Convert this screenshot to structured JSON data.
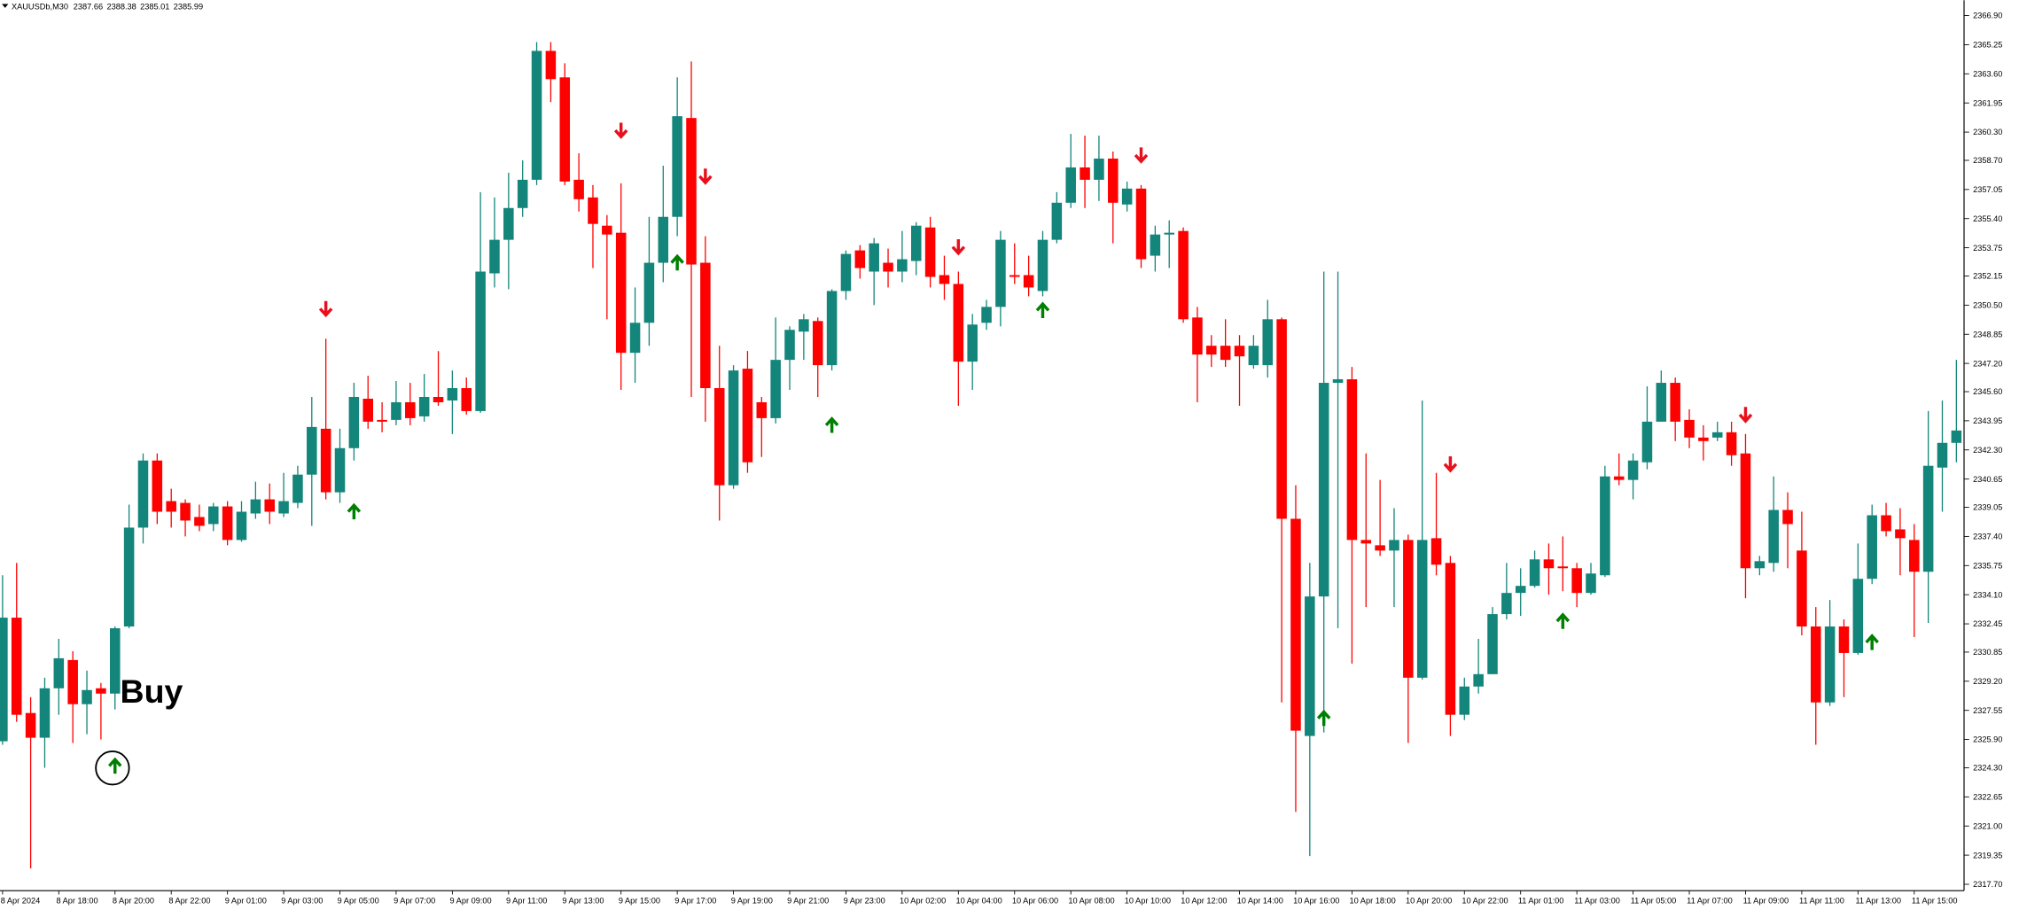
{
  "chart_data": {
    "type": "candlestick",
    "symbol": "XAUUSDb,M30",
    "ohlc": [
      2387.66,
      2388.38,
      2385.01,
      2385.99
    ],
    "annotation": "Buy",
    "up_color": "#13857a",
    "down_color": "#ff0000",
    "up_arrow_color": "#008000",
    "down_arrow_color": "#e8101c",
    "ylim": [
      2317.34,
      2367.77
    ],
    "yticks": [
      {
        "value": 2366.9,
        "label": "2366.90"
      },
      2365.25,
      {
        "value": 2363.6,
        "label": "2363.60"
      },
      2361.95,
      {
        "value": 2360.3,
        "label": "2360.30"
      },
      {
        "value": 2358.7,
        "label": "2358.70"
      },
      2357.05,
      {
        "value": 2355.4,
        "label": "2355.40"
      },
      2353.75,
      2352.15,
      {
        "value": 2350.5,
        "label": "2350.50"
      },
      2348.85,
      {
        "value": 2347.2,
        "label": "2347.20"
      },
      {
        "value": 2345.6,
        "label": "2345.60"
      },
      2343.95,
      {
        "value": 2342.3,
        "label": "2342.30"
      },
      2340.65,
      2339.05,
      {
        "value": 2337.4,
        "label": "2337.40"
      },
      2335.75,
      {
        "value": 2334.1,
        "label": "2334.10"
      },
      2332.45,
      2330.85,
      {
        "value": 2329.2,
        "label": "2329.20"
      },
      2327.55,
      {
        "value": 2325.9,
        "label": "2325.90"
      },
      {
        "value": 2324.3,
        "label": "2324.30"
      },
      2322.65,
      {
        "value": 2321.0,
        "label": "2321.00"
      },
      2319.35,
      {
        "value": 2317.7,
        "label": "2317.70"
      }
    ],
    "categories": [
      "8 Apr 2024",
      null,
      null,
      null,
      "8 Apr 18:00",
      null,
      null,
      null,
      "8 Apr 20:00",
      null,
      null,
      null,
      "8 Apr 22:00",
      null,
      null,
      null,
      "9 Apr 01:00",
      null,
      null,
      null,
      "9 Apr 03:00",
      null,
      null,
      null,
      "9 Apr 05:00",
      null,
      null,
      null,
      "9 Apr 07:00",
      null,
      null,
      null,
      "9 Apr 09:00",
      null,
      null,
      null,
      "9 Apr 11:00",
      null,
      null,
      null,
      "9 Apr 13:00",
      null,
      null,
      null,
      "9 Apr 15:00",
      null,
      null,
      null,
      "9 Apr 17:00",
      null,
      null,
      null,
      "9 Apr 19:00",
      null,
      null,
      null,
      "9 Apr 21:00",
      null,
      null,
      null,
      "9 Apr 23:00",
      null,
      null,
      null,
      "10 Apr 02:00",
      null,
      null,
      null,
      "10 Apr 04:00",
      null,
      null,
      null,
      "10 Apr 06:00",
      null,
      null,
      null,
      "10 Apr 08:00",
      null,
      null,
      null,
      "10 Apr 10:00",
      null,
      null,
      null,
      "10 Apr 12:00",
      null,
      null,
      null,
      "10 Apr 14:00",
      null,
      null,
      null,
      "10 Apr 16:00",
      null,
      null,
      null,
      "10 Apr 18:00",
      null,
      null,
      null,
      "10 Apr 20:00",
      null,
      null,
      null,
      "10 Apr 22:00",
      null,
      null,
      null,
      "11 Apr 01:00",
      null,
      null,
      null,
      "11 Apr 03:00",
      null,
      null,
      null,
      "11 Apr 05:00",
      null,
      null,
      null,
      "11 Apr 07:00",
      null,
      null,
      null,
      "11 Apr 09:00",
      null,
      null,
      null,
      "11 Apr 11:00",
      null,
      null,
      null,
      "11 Apr 13:00",
      null,
      null,
      null,
      "11 Apr 15:00",
      null,
      null,
      null
    ],
    "open": [
      2325.8,
      2332.8,
      2327.4,
      2326.0,
      2328.8,
      2330.4,
      2327.9,
      2328.8,
      2328.5,
      2332.3,
      2337.9,
      2341.7,
      2339.4,
      2339.3,
      2338.5,
      2338.1,
      2339.1,
      2337.2,
      2338.7,
      2339.5,
      2338.7,
      2339.3,
      2340.9,
      2343.5,
      2339.9,
      2342.4,
      2345.2,
      2344.0,
      2344.0,
      2345.0,
      2344.2,
      2345.3,
      2345.1,
      2345.8,
      2344.5,
      2352.3,
      2354.2,
      2356.0,
      2357.6,
      2364.9,
      2363.4,
      2357.6,
      2356.6,
      2355.0,
      2354.6,
      2347.8,
      2349.5,
      2352.9,
      2355.5,
      2361.1,
      2352.9,
      2345.8,
      2340.3,
      2346.9,
      2345.0,
      2344.1,
      2347.4,
      2349.0,
      2349.6,
      2347.1,
      2351.3,
      2353.6,
      2352.4,
      2352.9,
      2352.4,
      2353.0,
      2354.9,
      2352.2,
      2351.7,
      2347.3,
      2349.5,
      2350.4,
      2352.2,
      2352.2,
      2351.3,
      2354.2,
      2356.3,
      2358.3,
      2357.6,
      2358.8,
      2356.2,
      2357.1,
      2353.3,
      2354.5,
      2354.7,
      2349.8,
      2348.2,
      2348.2,
      2348.2,
      2347.1,
      2347.1,
      2349.7,
      2338.4,
      2326.1,
      2334.0,
      2346.1,
      2346.3,
      2337.2,
      2336.9,
      2336.6,
      2337.2,
      2329.4,
      2337.3,
      2335.9,
      2327.3,
      2328.9,
      2329.6,
      2333.0,
      2334.2,
      2334.6,
      2336.1,
      2335.7,
      2335.6,
      2334.2,
      2335.2,
      2340.8,
      2340.6,
      2341.6,
      2343.9,
      2346.1,
      2344.0,
      2343.0,
      2343.0,
      2343.3,
      2342.1,
      2335.6,
      2335.9,
      2338.9,
      2336.6,
      2332.3,
      2328.0,
      2332.3,
      2330.8,
      2335.0,
      2338.6,
      2337.8,
      2337.2,
      2335.4,
      2341.3,
      2342.7
    ],
    "high": [
      2335.2,
      2335.9,
      2328.3,
      2329.4,
      2331.6,
      2330.9,
      2329.8,
      2329.1,
      2332.3,
      2339.2,
      2342.1,
      2342.1,
      2340.1,
      2339.5,
      2339.2,
      2339.3,
      2339.4,
      2339.4,
      2340.5,
      2340.4,
      2341.0,
      2341.4,
      2345.3,
      2348.6,
      2343.5,
      2346.1,
      2346.5,
      2345.0,
      2346.2,
      2346.1,
      2346.6,
      2347.9,
      2346.8,
      2346.4,
      2356.9,
      2356.6,
      2358.0,
      2358.7,
      2365.4,
      2365.4,
      2364.2,
      2359.1,
      2357.3,
      2355.6,
      2357.4,
      2351.5,
      2355.5,
      2358.4,
      2363.4,
      2364.3,
      2354.4,
      2348.2,
      2347.1,
      2347.9,
      2345.3,
      2349.8,
      2349.3,
      2350.0,
      2349.8,
      2351.4,
      2353.6,
      2353.9,
      2354.3,
      2353.7,
      2354.7,
      2355.2,
      2355.5,
      2353.3,
      2352.4,
      2350.0,
      2350.8,
      2354.7,
      2354.0,
      2353.3,
      2354.7,
      2356.9,
      2360.2,
      2360.1,
      2360.1,
      2359.2,
      2357.5,
      2357.3,
      2355.0,
      2355.3,
      2354.9,
      2350.4,
      2348.8,
      2349.7,
      2348.8,
      2348.8,
      2350.8,
      2349.8,
      2340.3,
      2335.9,
      2352.4,
      2352.4,
      2347.0,
      2342.1,
      2340.6,
      2339.0,
      2337.5,
      2345.1,
      2341.0,
      2336.3,
      2329.4,
      2331.6,
      2333.4,
      2335.9,
      2335.6,
      2336.6,
      2337.0,
      2337.4,
      2335.9,
      2335.9,
      2341.4,
      2342.1,
      2342.1,
      2345.9,
      2346.8,
      2346.4,
      2344.6,
      2343.7,
      2343.9,
      2343.9,
      2343.2,
      2336.3,
      2340.8,
      2339.9,
      2338.8,
      2333.4,
      2333.8,
      2332.7,
      2337.0,
      2339.2,
      2339.3,
      2339.0,
      2338.1,
      2344.5,
      2345.1,
      2347.4
    ],
    "low": [
      2325.6,
      2326.9,
      2318.6,
      2324.3,
      2327.3,
      2325.7,
      2326.2,
      2325.9,
      2327.6,
      2332.2,
      2337.0,
      2338.1,
      2337.9,
      2337.4,
      2337.7,
      2337.7,
      2336.9,
      2337.1,
      2338.4,
      2338.1,
      2338.5,
      2339.0,
      2338.0,
      2339.5,
      2339.3,
      2341.7,
      2343.5,
      2343.3,
      2343.7,
      2343.7,
      2343.9,
      2344.8,
      2343.2,
      2344.3,
      2344.4,
      2351.5,
      2351.4,
      2355.5,
      2357.3,
      2362.0,
      2357.3,
      2355.8,
      2352.6,
      2349.7,
      2345.7,
      2346.1,
      2348.2,
      2351.8,
      2354.4,
      2345.3,
      2343.9,
      2338.3,
      2340.1,
      2341.0,
      2341.9,
      2343.8,
      2345.7,
      2347.4,
      2345.3,
      2346.8,
      2350.8,
      2352.0,
      2350.5,
      2351.5,
      2351.8,
      2352.2,
      2351.5,
      2350.8,
      2344.8,
      2345.7,
      2349.1,
      2349.3,
      2351.7,
      2351.0,
      2351.0,
      2354.0,
      2356.0,
      2356.0,
      2356.4,
      2354.0,
      2355.8,
      2352.6,
      2352.4,
      2352.6,
      2349.5,
      2345.0,
      2347.0,
      2347.0,
      2344.8,
      2346.9,
      2346.4,
      2328.0,
      2321.8,
      2319.3,
      2326.3,
      2332.2,
      2330.2,
      2333.4,
      2336.3,
      2333.4,
      2325.7,
      2329.3,
      2335.2,
      2326.1,
      2327.0,
      2328.5,
      2329.6,
      2332.7,
      2332.9,
      2334.5,
      2334.1,
      2334.3,
      2333.4,
      2334.1,
      2335.1,
      2340.3,
      2339.5,
      2341.2,
      2343.9,
      2342.8,
      2342.4,
      2341.7,
      2342.8,
      2341.4,
      2333.9,
      2335.2,
      2335.4,
      2335.6,
      2331.8,
      2325.6,
      2327.8,
      2328.3,
      2330.7,
      2334.7,
      2337.4,
      2335.2,
      2331.7,
      2332.5,
      2338.8,
      2341.6
    ],
    "close": [
      2332.8,
      2327.3,
      2326.0,
      2328.8,
      2330.5,
      2327.9,
      2328.7,
      2328.5,
      2332.2,
      2337.9,
      2341.7,
      2338.8,
      2338.8,
      2338.3,
      2338.0,
      2339.1,
      2337.2,
      2338.8,
      2339.5,
      2338.8,
      2339.4,
      2340.9,
      2343.6,
      2339.9,
      2342.4,
      2345.3,
      2343.9,
      2343.9,
      2345.0,
      2344.1,
      2345.3,
      2345.0,
      2345.8,
      2344.5,
      2352.4,
      2354.2,
      2356.0,
      2357.6,
      2364.9,
      2363.3,
      2357.5,
      2356.5,
      2355.1,
      2354.5,
      2347.8,
      2349.5,
      2352.9,
      2355.5,
      2361.2,
      2352.8,
      2345.8,
      2340.3,
      2346.8,
      2341.6,
      2344.1,
      2347.4,
      2349.1,
      2349.7,
      2347.1,
      2351.3,
      2353.4,
      2352.6,
      2354.0,
      2352.4,
      2353.1,
      2355.0,
      2352.1,
      2351.7,
      2347.3,
      2349.4,
      2350.4,
      2354.2,
      2352.1,
      2351.5,
      2354.2,
      2356.3,
      2358.3,
      2357.6,
      2358.8,
      2356.3,
      2357.1,
      2353.1,
      2354.5,
      2354.6,
      2349.7,
      2347.7,
      2347.7,
      2347.4,
      2347.6,
      2348.2,
      2349.7,
      2338.4,
      2326.4,
      2334.0,
      2346.1,
      2346.3,
      2337.2,
      2337.0,
      2336.6,
      2337.2,
      2329.4,
      2337.2,
      2335.8,
      2327.3,
      2328.9,
      2329.6,
      2333.0,
      2334.2,
      2334.6,
      2336.1,
      2335.6,
      2335.6,
      2334.2,
      2335.3,
      2340.8,
      2340.6,
      2341.7,
      2343.9,
      2346.1,
      2343.9,
      2343.0,
      2342.8,
      2343.3,
      2342.0,
      2335.6,
      2336.0,
      2338.9,
      2338.1,
      2332.3,
      2328.0,
      2332.3,
      2330.8,
      2335.0,
      2338.6,
      2337.7,
      2337.3,
      2335.4,
      2341.4,
      2342.7,
      2343.4
    ],
    "up_arrows": [
      null,
      null,
      null,
      null,
      null,
      null,
      null,
      null,
      2324.4,
      null,
      null,
      null,
      null,
      null,
      null,
      null,
      null,
      null,
      null,
      null,
      null,
      null,
      null,
      null,
      null,
      2338.8,
      null,
      null,
      null,
      null,
      null,
      null,
      null,
      null,
      null,
      null,
      null,
      null,
      null,
      null,
      null,
      null,
      null,
      null,
      null,
      null,
      null,
      null,
      2352.9,
      null,
      null,
      null,
      null,
      null,
      null,
      null,
      null,
      null,
      null,
      2343.7,
      null,
      null,
      null,
      null,
      null,
      null,
      null,
      null,
      null,
      null,
      null,
      null,
      null,
      null,
      2350.2,
      null,
      null,
      null,
      null,
      null,
      null,
      null,
      null,
      null,
      null,
      null,
      null,
      null,
      null,
      null,
      null,
      null,
      null,
      null,
      2327.1,
      null,
      null,
      null,
      null,
      null,
      null,
      null,
      null,
      null,
      null,
      null,
      null,
      null,
      null,
      null,
      null,
      2332.6,
      null,
      null,
      null,
      null,
      null,
      null,
      null,
      null,
      null,
      null,
      null,
      null,
      null,
      null,
      null,
      null,
      null,
      null,
      null,
      null,
      null,
      2331.4,
      null,
      null,
      null,
      null,
      null,
      null
    ],
    "down_arrows": [
      null,
      null,
      null,
      null,
      null,
      null,
      null,
      null,
      null,
      null,
      null,
      null,
      null,
      null,
      null,
      null,
      null,
      null,
      null,
      null,
      null,
      null,
      null,
      2350.3,
      null,
      null,
      null,
      null,
      null,
      null,
      null,
      null,
      null,
      null,
      null,
      null,
      null,
      null,
      null,
      null,
      null,
      null,
      null,
      null,
      2360.4,
      null,
      null,
      null,
      null,
      null,
      2357.8,
      null,
      null,
      null,
      null,
      null,
      null,
      null,
      null,
      null,
      null,
      null,
      null,
      null,
      null,
      null,
      null,
      null,
      2353.8,
      null,
      null,
      null,
      null,
      null,
      null,
      null,
      null,
      null,
      null,
      null,
      null,
      2359.0,
      null,
      null,
      null,
      null,
      null,
      null,
      null,
      null,
      null,
      null,
      null,
      null,
      null,
      null,
      null,
      null,
      null,
      null,
      null,
      null,
      null,
      2341.5,
      null,
      null,
      null,
      null,
      null,
      null,
      null,
      null,
      null,
      null,
      null,
      null,
      null,
      null,
      null,
      null,
      null,
      null,
      null,
      null,
      2344.3,
      null,
      null,
      null,
      null,
      null,
      null,
      null,
      null,
      null,
      null,
      null,
      null,
      null,
      null,
      null
    ]
  }
}
